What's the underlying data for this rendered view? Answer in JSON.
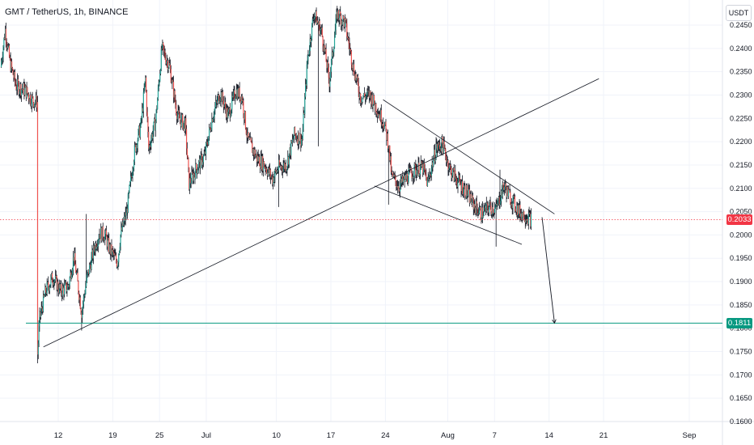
{
  "header": {
    "title": "GMT / TetherUS, 1h, BINANCE",
    "currency_button": "USDT"
  },
  "colors": {
    "up": "#26a69a",
    "down": "#ef5350",
    "candle": "#131722",
    "grid": "#f0f3fa",
    "current_price": "#f23645",
    "target": "#089981",
    "trendline": "#131722"
  },
  "chart_data": {
    "type": "candlestick",
    "symbol": "GMT / TetherUS",
    "interval": "1h",
    "exchange": "BINANCE",
    "ylim": [
      0.16,
      0.2465
    ],
    "y_ticks": [
      "0.2450",
      "0.2400",
      "0.2350",
      "0.2300",
      "0.2250",
      "0.2200",
      "0.2150",
      "0.2100",
      "0.2050",
      "0.2000",
      "0.1950",
      "0.1900",
      "0.1850",
      "0.1800",
      "0.1750",
      "0.1700",
      "0.1650",
      "0.1600"
    ],
    "x_ticks": [
      {
        "label": "12",
        "day": 12
      },
      {
        "label": "19",
        "day": 19
      },
      {
        "label": "25",
        "day": 25
      },
      {
        "label": "Jul",
        "day": 31
      },
      {
        "label": "10",
        "day": 40
      },
      {
        "label": "17",
        "day": 47
      },
      {
        "label": "24",
        "day": 54
      },
      {
        "label": "Aug",
        "day": 62
      },
      {
        "label": "7",
        "day": 68
      },
      {
        "label": "14",
        "day": 75
      },
      {
        "label": "21",
        "day": 82
      },
      {
        "label": "Sep",
        "day": 93
      }
    ],
    "price_path": [
      [
        4.6,
        0.236
      ],
      [
        5.2,
        0.244
      ],
      [
        5.8,
        0.237
      ],
      [
        6.6,
        0.232
      ],
      [
        7.8,
        0.231
      ],
      [
        8.6,
        0.229
      ],
      [
        9.3,
        0.2285
      ],
      [
        9.35,
        0.1745
      ],
      [
        9.6,
        0.182
      ],
      [
        10.4,
        0.188
      ],
      [
        11.3,
        0.191
      ],
      [
        12.3,
        0.188
      ],
      [
        13.3,
        0.189
      ],
      [
        14.0,
        0.1955
      ],
      [
        15.0,
        0.1835
      ],
      [
        15.6,
        0.19
      ],
      [
        16.6,
        0.197
      ],
      [
        17.3,
        0.2005
      ],
      [
        18.0,
        0.2
      ],
      [
        18.6,
        0.197
      ],
      [
        19.6,
        0.194
      ],
      [
        20.0,
        0.2
      ],
      [
        20.8,
        0.205
      ],
      [
        21.8,
        0.218
      ],
      [
        22.6,
        0.2235
      ],
      [
        23.2,
        0.2335
      ],
      [
        23.6,
        0.2185
      ],
      [
        24.5,
        0.2245
      ],
      [
        25.3,
        0.24
      ],
      [
        26.3,
        0.236
      ],
      [
        27.3,
        0.2255
      ],
      [
        28.3,
        0.2235
      ],
      [
        28.8,
        0.211
      ],
      [
        29.8,
        0.2145
      ],
      [
        30.8,
        0.217
      ],
      [
        31.8,
        0.2255
      ],
      [
        32.8,
        0.2305
      ],
      [
        33.8,
        0.2255
      ],
      [
        34.8,
        0.231
      ],
      [
        35.6,
        0.2295
      ],
      [
        36.3,
        0.2205
      ],
      [
        37.5,
        0.2165
      ],
      [
        38.5,
        0.215
      ],
      [
        39.5,
        0.212
      ],
      [
        40.3,
        0.2145
      ],
      [
        41.3,
        0.215
      ],
      [
        42.3,
        0.2215
      ],
      [
        43.3,
        0.2205
      ],
      [
        44.0,
        0.2375
      ],
      [
        44.8,
        0.2475
      ],
      [
        45.8,
        0.2435
      ],
      [
        46.8,
        0.233
      ],
      [
        47.8,
        0.2475
      ],
      [
        48.8,
        0.2455
      ],
      [
        49.8,
        0.2365
      ],
      [
        50.8,
        0.2295
      ],
      [
        52.0,
        0.23
      ],
      [
        52.8,
        0.2275
      ],
      [
        53.8,
        0.224
      ],
      [
        54.4,
        0.2195
      ],
      [
        54.8,
        0.2125
      ],
      [
        55.8,
        0.2105
      ],
      [
        56.8,
        0.2125
      ],
      [
        57.8,
        0.214
      ],
      [
        58.8,
        0.2145
      ],
      [
        59.4,
        0.211
      ],
      [
        60.5,
        0.2185
      ],
      [
        61.3,
        0.2195
      ],
      [
        62.3,
        0.214
      ],
      [
        63.3,
        0.2115
      ],
      [
        64.3,
        0.2095
      ],
      [
        65.3,
        0.2065
      ],
      [
        66.3,
        0.2045
      ],
      [
        67.3,
        0.206
      ],
      [
        68.2,
        0.2055
      ],
      [
        69.2,
        0.2105
      ],
      [
        70.2,
        0.2075
      ],
      [
        71.2,
        0.205
      ],
      [
        72.2,
        0.204
      ],
      [
        72.7,
        0.2033
      ]
    ],
    "spikes": [
      {
        "day": 9.35,
        "low": 0.1725
      },
      {
        "day": 15.0,
        "low": 0.1795
      },
      {
        "day": 15.6,
        "high": 0.2045
      },
      {
        "day": 40.3,
        "low": 0.206
      },
      {
        "day": 45.4,
        "low": 0.219
      },
      {
        "day": 54.4,
        "low": 0.2065
      },
      {
        "day": 60.5,
        "high": 0.221
      },
      {
        "day": 68.2,
        "low": 0.1975
      },
      {
        "day": 68.7,
        "high": 0.214
      }
    ],
    "current_price": 0.2033,
    "current_price_label": "0.2033",
    "target_price": 0.1811,
    "target_label": "0.1811",
    "trendlines": [
      {
        "name": "ascending-support",
        "points": [
          [
            10.1,
            0.176
          ],
          [
            81.4,
            0.2335
          ]
        ]
      },
      {
        "name": "descending-resistance",
        "points": [
          [
            53.7,
            0.229
          ],
          [
            75.7,
            0.2045
          ]
        ]
      },
      {
        "name": "descending-support",
        "points": [
          [
            52.6,
            0.2105
          ],
          [
            71.5,
            0.198
          ]
        ]
      }
    ],
    "projection_arrow": {
      "from": [
        74.1,
        0.2038
      ],
      "to": [
        75.7,
        0.1811
      ]
    }
  }
}
